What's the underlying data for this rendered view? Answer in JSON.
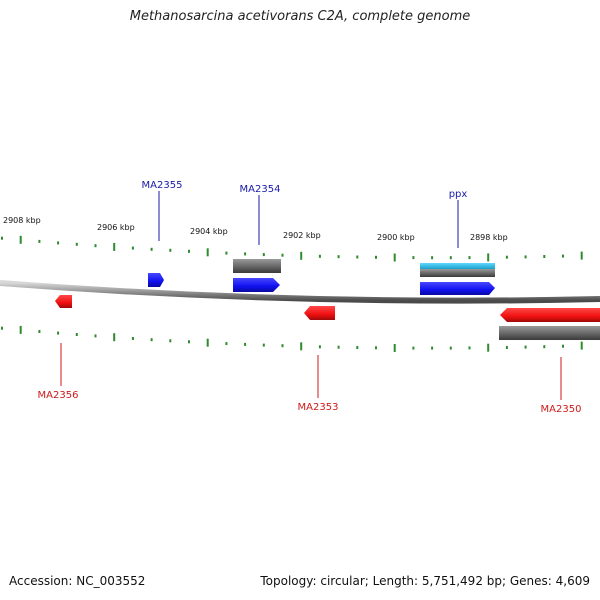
{
  "title": "Methanosarcina acetivorans C2A, complete genome",
  "accession": "Accession: NC_003552",
  "topology": "Topology: circular; Length: 5,751,492 bp; Genes: 4,609",
  "colors": {
    "forward_gene": "#1a1aff",
    "reverse_gene": "#ff1a1a",
    "forward_label": "#1a1aa8",
    "reverse_label": "#cc1a1a",
    "cds_gray": "#6e6e6e",
    "ppx_cyan": "#22bde8",
    "tick": "#2e8b2e",
    "backbone": "#8a8a8a"
  },
  "ruler": {
    "labels": [
      "2908 kbp",
      "2906 kbp",
      "2904 kbp",
      "2902 kbp",
      "2900 kbp",
      "2898 kbp"
    ]
  },
  "genes": [
    {
      "name": "MA2355",
      "strand": "+"
    },
    {
      "name": "MA2354",
      "strand": "+"
    },
    {
      "name": "ppx",
      "strand": "+"
    },
    {
      "name": "MA2356",
      "strand": "-"
    },
    {
      "name": "MA2353",
      "strand": "-"
    },
    {
      "name": "MA2350",
      "strand": "-"
    }
  ]
}
